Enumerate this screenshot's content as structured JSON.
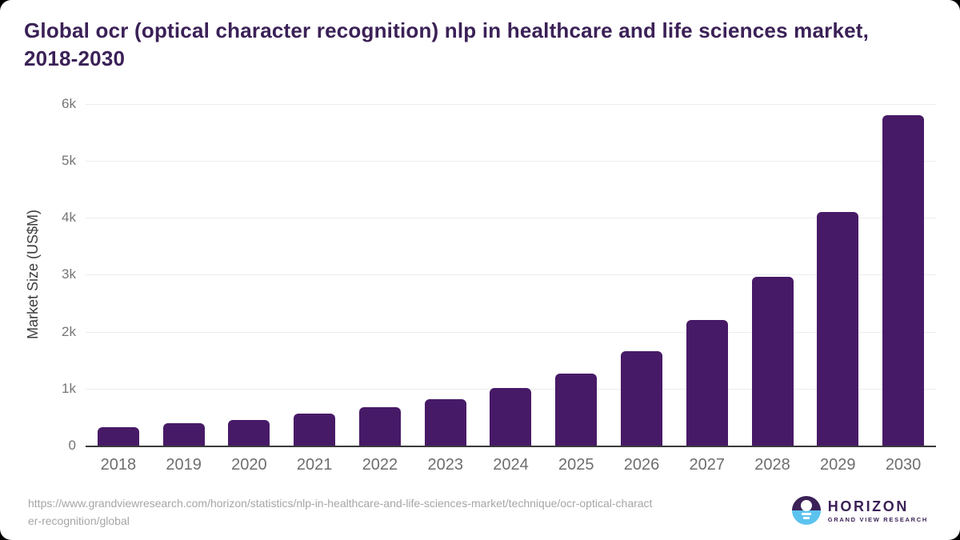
{
  "header": {
    "title_line1": "Global ocr (optical character recognition) nlp in healthcare and life sciences market,",
    "title_line2": "2018-2030"
  },
  "chart_data": {
    "type": "bar",
    "title": "Global ocr (optical character recognition) nlp in healthcare and life sciences market, 2018-2030",
    "categories": [
      "2018",
      "2019",
      "2020",
      "2021",
      "2022",
      "2023",
      "2024",
      "2025",
      "2026",
      "2027",
      "2028",
      "2029",
      "2030"
    ],
    "values": [
      330,
      390,
      455,
      560,
      670,
      810,
      1015,
      1270,
      1660,
      2200,
      2970,
      4100,
      5800
    ],
    "xlabel": "",
    "ylabel": "Market Size (US$M)",
    "ylim": [
      0,
      6000
    ],
    "yticks": [
      {
        "value": 0,
        "label": "0"
      },
      {
        "value": 1000,
        "label": "1k"
      },
      {
        "value": 2000,
        "label": "2k"
      },
      {
        "value": 3000,
        "label": "3k"
      },
      {
        "value": 4000,
        "label": "4k"
      },
      {
        "value": 5000,
        "label": "5k"
      },
      {
        "value": 6000,
        "label": "6k"
      }
    ],
    "grid": true,
    "legend_position": "none",
    "bar_color": "#471a67"
  },
  "colors": {
    "title_text": "#3b2157",
    "bar": "#471a67",
    "axis_line": "#3a3a3a",
    "gridline": "#ececec",
    "tick_text": "#757575",
    "source_text": "#a6a6a6",
    "logo_purple": "#3b2157",
    "logo_blue": "#5cc3ef"
  },
  "footer": {
    "source_url_line1": "https://www.grandviewresearch.com/horizon/statistics/nlp-in-healthcare-and-life-sciences-market/technique/ocr-optical-charact",
    "source_url_line2": "er-recognition/global",
    "logo": {
      "name": "HORIZON",
      "subtitle": "GRAND VIEW RESEARCH",
      "icon": "horizon-sunset-icon"
    }
  }
}
